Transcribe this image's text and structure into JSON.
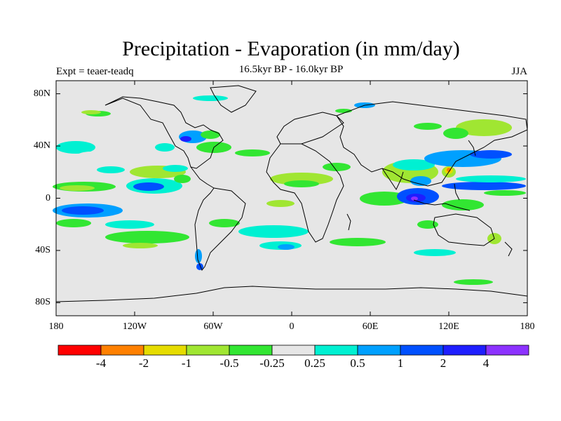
{
  "title": "Precipitation - Evaporation (in mm/day)",
  "subtitle": "16.5kyr BP - 16.0kyr BP",
  "experiment": "Expt = teaer-teadq",
  "season": "JJA",
  "colors": {
    "background": "#e6e6e6",
    "coast": "#000000"
  },
  "chart_data": {
    "type": "heatmap",
    "map_projection": "cylindrical-equidistant",
    "title": "Precipitation - Evaporation (in mm/day)",
    "subtitle": "16.5kyr BP - 16.0kyr BP",
    "lon_range": [
      -180,
      180
    ],
    "lat_range": [
      -90,
      90
    ],
    "lat_ticks": [
      {
        "value": 80,
        "label": "80N"
      },
      {
        "value": 40,
        "label": "40N"
      },
      {
        "value": 0,
        "label": "0"
      },
      {
        "value": -40,
        "label": "40S"
      },
      {
        "value": -80,
        "label": "80S"
      }
    ],
    "lon_ticks": [
      {
        "value": -180,
        "label": "180"
      },
      {
        "value": -120,
        "label": "120W"
      },
      {
        "value": -60,
        "label": "60W"
      },
      {
        "value": 0,
        "label": "0"
      },
      {
        "value": 60,
        "label": "60E"
      },
      {
        "value": 120,
        "label": "120E"
      },
      {
        "value": 180,
        "label": "180"
      }
    ],
    "color_levels": [
      "-4",
      "-2",
      "-1",
      "-0.5",
      "-0.25",
      "0.25",
      "0.5",
      "1",
      "2",
      "4"
    ],
    "color_bins": [
      "#ff0000",
      "#ff8000",
      "#e6dc00",
      "#a0e632",
      "#32e632",
      "#e6e6e6",
      "#00f0d2",
      "#00a0ff",
      "#0050ff",
      "#1e1eff",
      "#8c32ff"
    ]
  }
}
